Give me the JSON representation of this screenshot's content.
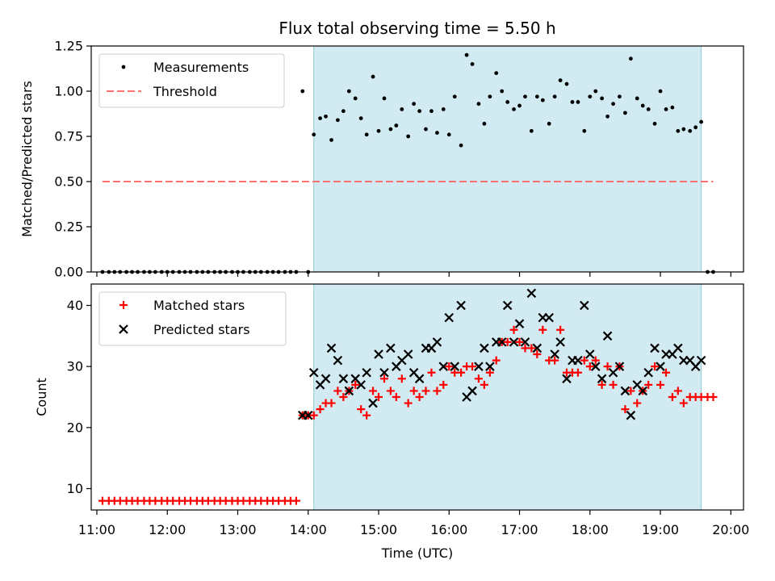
{
  "chart_data": {
    "type": "scatter",
    "title": "Flux total observing time = 5.50 h",
    "xlabel": "Time (UTC)",
    "xlim": [
      10.92,
      20.18
    ],
    "x_ticks": [
      "11:00",
      "12:00",
      "13:00",
      "14:00",
      "15:00",
      "16:00",
      "17:00",
      "18:00",
      "19:00",
      "20:00"
    ],
    "x_tick_values": [
      11,
      12,
      13,
      14,
      15,
      16,
      17,
      18,
      19,
      20
    ],
    "colors": {
      "shade": "#add8e6",
      "threshold": "#ff7070",
      "matched": "#ff0000",
      "predicted": "#000000",
      "measurement": "#000000"
    },
    "panels": [
      {
        "ylabel": "Matched/Predicted stars",
        "ylim": [
          0,
          1.25
        ],
        "y_ticks": [
          "0.00",
          "0.25",
          "0.50",
          "0.75",
          "1.00",
          "1.25"
        ],
        "y_tick_values": [
          0,
          0.25,
          0.5,
          0.75,
          1.0,
          1.25
        ],
        "shaded_region": {
          "x": [
            14.08,
            19.58
          ]
        },
        "legend": [
          "Measurements",
          "Threshold"
        ],
        "legend_position": "upper-left",
        "threshold": {
          "name": "Threshold",
          "y": 0.5,
          "x": [
            11.08,
            19.75
          ],
          "style": "dashed"
        },
        "series": [
          {
            "name": "Measurements",
            "marker": "dot",
            "x": [
              11.08,
              11.17,
              11.25,
              11.33,
              11.42,
              11.5,
              11.58,
              11.67,
              11.75,
              11.83,
              11.92,
              12.0,
              12.08,
              12.17,
              12.25,
              12.33,
              12.42,
              12.5,
              12.58,
              12.67,
              12.75,
              12.83,
              12.92,
              13.0,
              13.08,
              13.17,
              13.25,
              13.33,
              13.42,
              13.5,
              13.58,
              13.67,
              13.75,
              13.83,
              13.92,
              14.0,
              14.08,
              14.17,
              14.25,
              14.33,
              14.42,
              14.5,
              14.58,
              14.67,
              14.75,
              14.83,
              14.92,
              15.0,
              15.08,
              15.17,
              15.25,
              15.33,
              15.42,
              15.5,
              15.58,
              15.67,
              15.75,
              15.83,
              15.92,
              16.0,
              16.08,
              16.17,
              16.25,
              16.33,
              16.42,
              16.5,
              16.58,
              16.67,
              16.75,
              16.83,
              16.92,
              17.0,
              17.08,
              17.17,
              17.25,
              17.33,
              17.42,
              17.5,
              17.58,
              17.67,
              17.75,
              17.83,
              17.92,
              18.0,
              18.08,
              18.17,
              18.25,
              18.33,
              18.42,
              18.5,
              18.58,
              18.67,
              18.75,
              18.83,
              18.92,
              19.0,
              19.08,
              19.17,
              19.25,
              19.33,
              19.42,
              19.5,
              19.58,
              19.67,
              19.75
            ],
            "y": [
              0,
              0,
              0,
              0,
              0,
              0,
              0,
              0,
              0,
              0,
              0,
              0,
              0,
              0,
              0,
              0,
              0,
              0,
              0,
              0,
              0,
              0,
              0,
              0,
              0,
              0,
              0,
              0,
              0,
              0,
              0,
              0,
              0,
              0,
              1.0,
              0,
              0.76,
              0.85,
              0.86,
              0.73,
              0.84,
              0.89,
              1.0,
              0.96,
              0.85,
              0.76,
              1.08,
              0.78,
              0.96,
              0.79,
              0.81,
              0.9,
              0.75,
              0.93,
              0.89,
              0.79,
              0.89,
              0.77,
              0.9,
              0.76,
              0.97,
              0.7,
              1.2,
              1.15,
              0.93,
              0.82,
              0.97,
              1.1,
              1.0,
              0.94,
              0.9,
              0.92,
              0.97,
              0.78,
              0.97,
              0.95,
              0.82,
              0.97,
              1.06,
              1.04,
              0.94,
              0.94,
              0.78,
              0.97,
              1.0,
              0.96,
              0.86,
              0.93,
              0.97,
              0.88,
              1.18,
              0.96,
              0.92,
              0.9,
              0.82,
              1.0,
              0.9,
              0.91,
              0.78,
              0.79,
              0.78,
              0.8,
              0.83,
              0,
              0
            ]
          }
        ]
      },
      {
        "ylabel": "Count",
        "ylim": [
          6.5,
          43.5
        ],
        "y_ticks": [
          "10",
          "20",
          "30",
          "40"
        ],
        "y_tick_values": [
          10,
          20,
          30,
          40
        ],
        "shaded_region": {
          "x": [
            14.08,
            19.58
          ]
        },
        "legend": [
          "Matched stars",
          "Predicted stars"
        ],
        "legend_position": "upper-left",
        "series": [
          {
            "name": "Matched stars",
            "marker": "plus",
            "x": [
              11.08,
              11.17,
              11.25,
              11.33,
              11.42,
              11.5,
              11.58,
              11.67,
              11.75,
              11.83,
              11.92,
              12.0,
              12.08,
              12.17,
              12.25,
              12.33,
              12.42,
              12.5,
              12.58,
              12.67,
              12.75,
              12.83,
              12.92,
              13.0,
              13.08,
              13.17,
              13.25,
              13.33,
              13.42,
              13.5,
              13.58,
              13.67,
              13.75,
              13.83,
              13.92,
              14.0,
              14.08,
              14.17,
              14.25,
              14.33,
              14.42,
              14.5,
              14.58,
              14.67,
              14.75,
              14.83,
              14.92,
              15.0,
              15.08,
              15.17,
              15.25,
              15.33,
              15.42,
              15.5,
              15.58,
              15.67,
              15.75,
              15.83,
              15.92,
              16.0,
              16.08,
              16.17,
              16.25,
              16.33,
              16.42,
              16.5,
              16.58,
              16.67,
              16.75,
              16.83,
              16.92,
              17.0,
              17.08,
              17.17,
              17.25,
              17.33,
              17.42,
              17.5,
              17.58,
              17.67,
              17.75,
              17.83,
              17.92,
              18.0,
              18.08,
              18.17,
              18.25,
              18.33,
              18.42,
              18.5,
              18.58,
              18.67,
              18.75,
              18.83,
              18.92,
              19.0,
              19.08,
              19.17,
              19.25,
              19.33,
              19.42,
              19.5,
              19.58,
              19.67,
              19.75
            ],
            "y": [
              8,
              8,
              8,
              8,
              8,
              8,
              8,
              8,
              8,
              8,
              8,
              8,
              8,
              8,
              8,
              8,
              8,
              8,
              8,
              8,
              8,
              8,
              8,
              8,
              8,
              8,
              8,
              8,
              8,
              8,
              8,
              8,
              8,
              8,
              22,
              22,
              22,
              23,
              24,
              24,
              26,
              25,
              26,
              27,
              23,
              22,
              26,
              25,
              28,
              26,
              25,
              28,
              24,
              26,
              25,
              26,
              29,
              26,
              27,
              30,
              29,
              29,
              30,
              30,
              28,
              27,
              29,
              31,
              34,
              34,
              36,
              34,
              33,
              33,
              32,
              36,
              31,
              31,
              36,
              29,
              29,
              29,
              31,
              30,
              31,
              27,
              30,
              27,
              30,
              23,
              26,
              24,
              26,
              27,
              30,
              27,
              29,
              25,
              26,
              24,
              25,
              25,
              25,
              25,
              25
            ]
          },
          {
            "name": "Predicted stars",
            "marker": "x",
            "x": [
              13.92,
              14.0,
              14.08,
              14.17,
              14.25,
              14.33,
              14.42,
              14.5,
              14.58,
              14.67,
              14.75,
              14.83,
              14.92,
              15.0,
              15.08,
              15.17,
              15.25,
              15.33,
              15.42,
              15.5,
              15.58,
              15.67,
              15.75,
              15.83,
              15.92,
              16.0,
              16.08,
              16.17,
              16.25,
              16.33,
              16.42,
              16.5,
              16.58,
              16.67,
              16.75,
              16.83,
              16.92,
              17.0,
              17.08,
              17.17,
              17.25,
              17.33,
              17.42,
              17.5,
              17.58,
              17.67,
              17.75,
              17.83,
              17.92,
              18.0,
              18.08,
              18.17,
              18.25,
              18.33,
              18.42,
              18.5,
              18.58,
              18.67,
              18.75,
              18.83,
              18.92,
              19.0,
              19.08,
              19.17,
              19.25,
              19.33,
              19.42,
              19.5,
              19.58
            ],
            "y": [
              22,
              22,
              29,
              27,
              28,
              33,
              31,
              28,
              26,
              28,
              27,
              29,
              24,
              32,
              29,
              33,
              30,
              31,
              32,
              29,
              28,
              33,
              33,
              34,
              30,
              38,
              30,
              40,
              25,
              26,
              30,
              33,
              30,
              34,
              34,
              40,
              34,
              37,
              34,
              42,
              33,
              38,
              38,
              32,
              34,
              28,
              31,
              31,
              40,
              32,
              30,
              28,
              35,
              29,
              30,
              26,
              22,
              27,
              26,
              29,
              33,
              30,
              32,
              32,
              33,
              31,
              31,
              30,
              31
            ]
          }
        ]
      }
    ]
  }
}
